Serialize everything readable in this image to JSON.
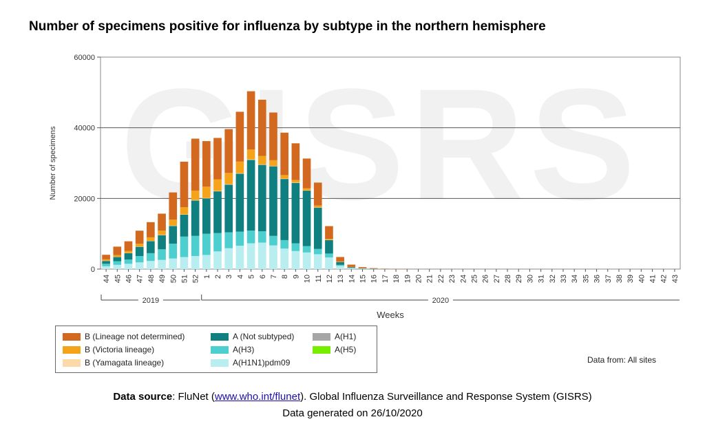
{
  "title": "Number of specimens positive for influenza by subtype in the northern hemisphere",
  "watermark": "GISRS",
  "chart_data": {
    "type": "bar",
    "stacked": true,
    "title": "Number of specimens positive for influenza by subtype in the northern hemisphere",
    "xlabel": "Weeks",
    "ylabel": "Number of specimens",
    "ylim": [
      0,
      60000
    ],
    "yticks": [
      "0",
      "20000",
      "40000",
      "60000"
    ],
    "grid": true,
    "categories": [
      "44",
      "45",
      "46",
      "47",
      "48",
      "49",
      "50",
      "51",
      "52",
      "1",
      "2",
      "3",
      "4",
      "5",
      "6",
      "7",
      "8",
      "9",
      "10",
      "11",
      "12",
      "13",
      "14",
      "15",
      "16",
      "17",
      "18",
      "19",
      "20",
      "21",
      "22",
      "23",
      "24",
      "25",
      "26",
      "27",
      "28",
      "29",
      "30",
      "31",
      "32",
      "33",
      "34",
      "35",
      "36",
      "37",
      "38",
      "39",
      "40",
      "41",
      "42",
      "43"
    ],
    "year_groups": [
      {
        "label": "2019",
        "start": "44",
        "end": "52"
      },
      {
        "label": "2020",
        "start": "1",
        "end": "43"
      }
    ],
    "series": [
      {
        "name": "A(H1N1)pdm09",
        "color": "#b8eef0",
        "values": [
          800,
          1200,
          1500,
          1900,
          2300,
          2600,
          3000,
          3400,
          3700,
          4000,
          5000,
          5900,
          6600,
          7300,
          7500,
          6700,
          5800,
          5100,
          4700,
          4200,
          3300,
          900,
          250,
          100,
          50,
          20,
          10,
          5,
          5,
          5,
          5,
          5,
          5,
          5,
          5,
          5,
          5,
          5,
          5,
          5,
          5,
          5,
          5,
          5,
          5,
          5,
          5,
          5,
          5,
          5,
          5,
          5
        ]
      },
      {
        "name": "A(H3)",
        "color": "#4ecfcf",
        "values": [
          700,
          1000,
          1200,
          1800,
          2200,
          3000,
          4200,
          5800,
          5700,
          6000,
          5200,
          4500,
          4000,
          3600,
          3200,
          2700,
          2400,
          2200,
          1800,
          1500,
          1100,
          300,
          100,
          50,
          20,
          10,
          5,
          5,
          5,
          5,
          5,
          5,
          5,
          5,
          5,
          5,
          5,
          5,
          5,
          5,
          5,
          5,
          5,
          5,
          5,
          5,
          5,
          5,
          5,
          5,
          5,
          5
        ]
      },
      {
        "name": "A(Not subtyped)",
        "color": "#0f7f7f",
        "values": [
          800,
          1200,
          1800,
          2600,
          3400,
          4000,
          5000,
          6200,
          10000,
          10000,
          11800,
          13500,
          16400,
          20000,
          18800,
          19700,
          17300,
          17100,
          15700,
          11700,
          3800,
          800,
          200,
          80,
          30,
          10,
          5,
          5,
          5,
          5,
          5,
          5,
          5,
          5,
          5,
          5,
          5,
          5,
          5,
          5,
          5,
          5,
          5,
          5,
          5,
          5,
          5,
          5,
          5,
          5,
          5,
          5
        ]
      },
      {
        "name": "A(H1)",
        "color": "#a6a6a6",
        "values": [
          0,
          0,
          0,
          0,
          0,
          0,
          0,
          0,
          0,
          0,
          0,
          0,
          0,
          0,
          0,
          0,
          0,
          0,
          0,
          0,
          0,
          0,
          0,
          0,
          0,
          0,
          0,
          0,
          0,
          0,
          0,
          0,
          0,
          0,
          0,
          0,
          0,
          0,
          0,
          0,
          0,
          0,
          0,
          0,
          0,
          0,
          0,
          0,
          0,
          0,
          0,
          0
        ]
      },
      {
        "name": "A(H5)",
        "color": "#77ee00",
        "values": [
          0,
          0,
          0,
          0,
          0,
          0,
          0,
          0,
          0,
          0,
          0,
          0,
          0,
          0,
          0,
          0,
          0,
          0,
          0,
          0,
          0,
          0,
          0,
          0,
          0,
          0,
          0,
          0,
          0,
          0,
          0,
          0,
          0,
          0,
          0,
          0,
          0,
          0,
          0,
          0,
          0,
          0,
          0,
          0,
          0,
          0,
          0,
          0,
          0,
          0,
          0,
          0
        ]
      },
      {
        "name": "B (Yamagata lineage)",
        "color": "#fbd9a8",
        "values": [
          50,
          50,
          60,
          70,
          80,
          90,
          100,
          100,
          120,
          120,
          120,
          120,
          130,
          140,
          140,
          120,
          110,
          100,
          90,
          80,
          60,
          20,
          10,
          5,
          5,
          0,
          0,
          0,
          0,
          0,
          0,
          0,
          0,
          0,
          0,
          0,
          0,
          0,
          0,
          0,
          0,
          0,
          0,
          0,
          0,
          0,
          0,
          0,
          0,
          0,
          0,
          0
        ]
      },
      {
        "name": "B (Victoria lineage)",
        "color": "#f5a41a",
        "values": [
          400,
          500,
          600,
          800,
          1000,
          1200,
          1700,
          2000,
          2700,
          3200,
          3300,
          3200,
          3300,
          2800,
          2400,
          1600,
          1000,
          700,
          600,
          500,
          300,
          100,
          50,
          20,
          10,
          5,
          0,
          0,
          0,
          0,
          0,
          0,
          0,
          0,
          0,
          0,
          0,
          0,
          0,
          0,
          0,
          0,
          0,
          0,
          0,
          0,
          0,
          0,
          0,
          0,
          0,
          0
        ]
      },
      {
        "name": "B (Lineage not determined)",
        "color": "#d2691e",
        "values": [
          1300,
          2400,
          2700,
          3700,
          4300,
          4800,
          7700,
          12900,
          14700,
          12900,
          11700,
          12400,
          14100,
          16500,
          15900,
          13500,
          12000,
          10400,
          8400,
          6500,
          3600,
          1300,
          650,
          300,
          150,
          80,
          50,
          40,
          30,
          30,
          20,
          20,
          20,
          20,
          20,
          20,
          20,
          20,
          20,
          20,
          20,
          20,
          20,
          20,
          20,
          20,
          20,
          20,
          20,
          20,
          20,
          20
        ]
      }
    ]
  },
  "legend": {
    "items": [
      {
        "label": "B (Lineage not determined)",
        "color": "#d2691e"
      },
      {
        "label": "B (Victoria lineage)",
        "color": "#f5a41a"
      },
      {
        "label": "B (Yamagata lineage)",
        "color": "#fbd9a8"
      },
      {
        "label": "A (Not subtyped)",
        "color": "#0f7f7f"
      },
      {
        "label": "A(H3)",
        "color": "#4ecfcf"
      },
      {
        "label": "A(H1N1)pdm09",
        "color": "#b8eef0"
      },
      {
        "label": "A(H1)",
        "color": "#a6a6a6"
      },
      {
        "label": "A(H5)",
        "color": "#77ee00"
      }
    ]
  },
  "data_from": "Data from: All sites",
  "source": {
    "label": "Data source",
    "pre": ": FluNet (",
    "link": "www.who.int/flunet",
    "post": "). Global Influenza Surveillance and Response System (GISRS)"
  },
  "generated": "Data generated on 26/10/2020"
}
